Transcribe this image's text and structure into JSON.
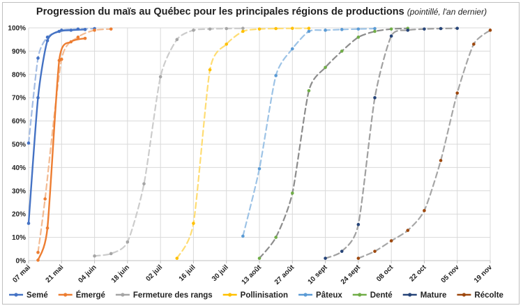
{
  "chart_data": {
    "type": "line",
    "title": "Progression du maïs au Québec pour les principales régions de productions",
    "subtitle": "(pointillé, l'an dernier)",
    "ylim": [
      0,
      100
    ],
    "y_ticks": [
      "0%",
      "10%",
      "20%",
      "30%",
      "40%",
      "50%",
      "60%",
      "70%",
      "80%",
      "90%",
      "100%"
    ],
    "x_ticks": [
      "07 mai",
      "21 mai",
      "04 juin",
      "18 juin",
      "02 juil",
      "16 juil",
      "30 juil",
      "13 août",
      "27 août",
      "10 sept",
      "24 sept",
      "08 oct",
      "22 oct",
      "05 nov",
      "19 nov"
    ],
    "x_tick_days": [
      0,
      14,
      28,
      42,
      56,
      70,
      84,
      98,
      112,
      126,
      140,
      154,
      168,
      182,
      196
    ],
    "grid": true,
    "legend_position": "bottom",
    "series": [
      {
        "name": "Semé",
        "color": "#4472c4",
        "dashed": false,
        "points": [
          [
            0,
            16
          ],
          [
            4,
            70
          ],
          [
            8,
            94.5
          ],
          [
            13,
            98.5
          ],
          [
            18,
            99
          ],
          [
            24,
            99.3
          ]
        ]
      },
      {
        "name": "Émergé",
        "color": "#ed7d31",
        "dashed": false,
        "points": [
          [
            4,
            0.2
          ],
          [
            8,
            14
          ],
          [
            13,
            86
          ],
          [
            18,
            94
          ],
          [
            24,
            95.5
          ]
        ]
      },
      {
        "name": "Fermeture des rangs",
        "color": "#a5a5a5",
        "dashed": false,
        "points": []
      },
      {
        "name": "Pollinisation",
        "color": "#ffc000",
        "dashed": false,
        "points": []
      },
      {
        "name": "Pâteux",
        "color": "#5b9bd5",
        "dashed": false,
        "points": []
      },
      {
        "name": "Denté",
        "color": "#70ad47",
        "dashed": false,
        "points": []
      },
      {
        "name": "Mature",
        "color": "#264478",
        "dashed": false,
        "points": []
      },
      {
        "name": "Récolte",
        "color": "#9e480e",
        "dashed": false,
        "points": []
      }
    ],
    "previous_year_series": [
      {
        "name": "Semé",
        "color": "#a4bde4",
        "dashed": true,
        "points": [
          [
            0,
            50.5
          ],
          [
            4,
            87
          ],
          [
            8,
            96
          ],
          [
            14,
            99
          ],
          [
            21,
            99.5
          ],
          [
            28,
            99.7
          ]
        ]
      },
      {
        "name": "Émergé",
        "color": "#f3bb93",
        "dashed": true,
        "points": [
          [
            4,
            3.5
          ],
          [
            7,
            26.5
          ],
          [
            14,
            86.5
          ],
          [
            21,
            96
          ],
          [
            28,
            99
          ],
          [
            35,
            99.5
          ]
        ]
      },
      {
        "name": "Fermeture des rangs",
        "color": "#cccccc",
        "dashed": true,
        "points": [
          [
            28,
            2
          ],
          [
            35,
            3
          ],
          [
            42,
            8
          ],
          [
            49,
            33
          ],
          [
            56,
            79
          ],
          [
            63,
            95
          ],
          [
            70,
            99
          ],
          [
            77,
            99.5
          ],
          [
            84,
            99.7
          ],
          [
            91,
            99.8
          ]
        ]
      },
      {
        "name": "Pollinisation",
        "color": "#ffdd73",
        "dashed": true,
        "points": [
          [
            63,
            1
          ],
          [
            70,
            16
          ],
          [
            77,
            82
          ],
          [
            84,
            93
          ],
          [
            91,
            98.5
          ],
          [
            98,
            99.5
          ],
          [
            105,
            99.7
          ],
          [
            112,
            99.8
          ],
          [
            119,
            99.8
          ]
        ]
      },
      {
        "name": "Pâteux",
        "color": "#9dc3e6",
        "dashed": true,
        "points": [
          [
            91,
            10.5
          ],
          [
            98,
            39.5
          ],
          [
            105,
            79.5
          ],
          [
            112,
            91
          ],
          [
            119,
            98.5
          ],
          [
            126,
            99
          ],
          [
            133,
            99.3
          ],
          [
            140,
            99.5
          ],
          [
            147,
            99.7
          ]
        ]
      },
      {
        "name": "Denté",
        "color": "#8c8c8c",
        "dashed": true,
        "points": [
          [
            98,
            1
          ],
          [
            105,
            10
          ],
          [
            112,
            29
          ],
          [
            119,
            73
          ],
          [
            126,
            83
          ],
          [
            133,
            90
          ],
          [
            140,
            96
          ],
          [
            147,
            98.5
          ],
          [
            154,
            99.5
          ],
          [
            161,
            99.8
          ]
        ]
      },
      {
        "name": "Mature",
        "color": "#a0a0a0",
        "dashed": true,
        "points": [
          [
            126,
            1
          ],
          [
            133,
            4
          ],
          [
            140,
            15.5
          ],
          [
            147,
            70
          ],
          [
            154,
            96.5
          ],
          [
            161,
            99
          ],
          [
            168,
            99.5
          ],
          [
            175,
            99.7
          ],
          [
            182,
            99.8
          ]
        ]
      },
      {
        "name": "Récolte",
        "color": "#a6a6a6",
        "dashed": true,
        "points": [
          [
            140,
            1
          ],
          [
            147,
            4
          ],
          [
            154,
            8.5
          ],
          [
            161,
            13
          ],
          [
            168,
            21.5
          ],
          [
            175,
            43
          ],
          [
            182,
            72
          ],
          [
            189,
            93
          ],
          [
            196,
            99
          ]
        ]
      }
    ]
  }
}
